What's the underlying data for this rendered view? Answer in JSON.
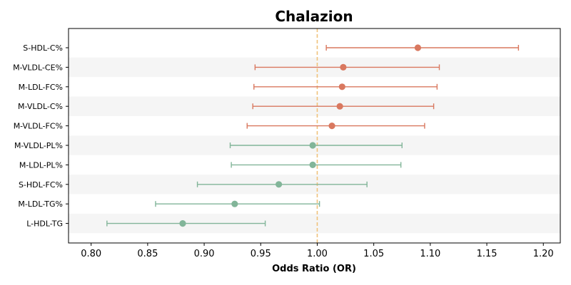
{
  "chart_data": {
    "type": "forest",
    "title": "Chalazion",
    "xlabel": "Odds Ratio (OR)",
    "ylabel": "",
    "xlim": [
      0.78,
      1.215
    ],
    "xticks": [
      0.8,
      0.85,
      0.9,
      0.95,
      1.0,
      1.05,
      1.1,
      1.15,
      1.2
    ],
    "xtick_labels": [
      "0.80",
      "0.85",
      "0.90",
      "0.95",
      "1.00",
      "1.05",
      "1.10",
      "1.15",
      "1.20"
    ],
    "reference_line": 1.0,
    "grid": false,
    "legend": "none",
    "colors": {
      "positive": "#d9785f",
      "negative": "#82b599",
      "reference": "#f0c27b",
      "stripe": "#f5f5f5"
    },
    "rows": [
      {
        "label": "S-HDL-C%",
        "or": 1.089,
        "lower": 1.008,
        "upper": 1.178
      },
      {
        "label": "M-VLDL-CE%",
        "or": 1.023,
        "lower": 0.945,
        "upper": 1.108
      },
      {
        "label": "M-LDL-FC%",
        "or": 1.022,
        "lower": 0.944,
        "upper": 1.106
      },
      {
        "label": "M-VLDL-C%",
        "or": 1.02,
        "lower": 0.943,
        "upper": 1.103
      },
      {
        "label": "M-VLDL-FC%",
        "or": 1.013,
        "lower": 0.938,
        "upper": 1.095
      },
      {
        "label": "M-VLDL-PL%",
        "or": 0.996,
        "lower": 0.923,
        "upper": 1.075
      },
      {
        "label": "M-LDL-PL%",
        "or": 0.996,
        "lower": 0.924,
        "upper": 1.074
      },
      {
        "label": "S-HDL-FC%",
        "or": 0.966,
        "lower": 0.894,
        "upper": 1.044
      },
      {
        "label": "M-LDL-TG%",
        "or": 0.927,
        "lower": 0.857,
        "upper": 1.002
      },
      {
        "label": "L-HDL-TG",
        "or": 0.881,
        "lower": 0.814,
        "upper": 0.954
      }
    ]
  }
}
